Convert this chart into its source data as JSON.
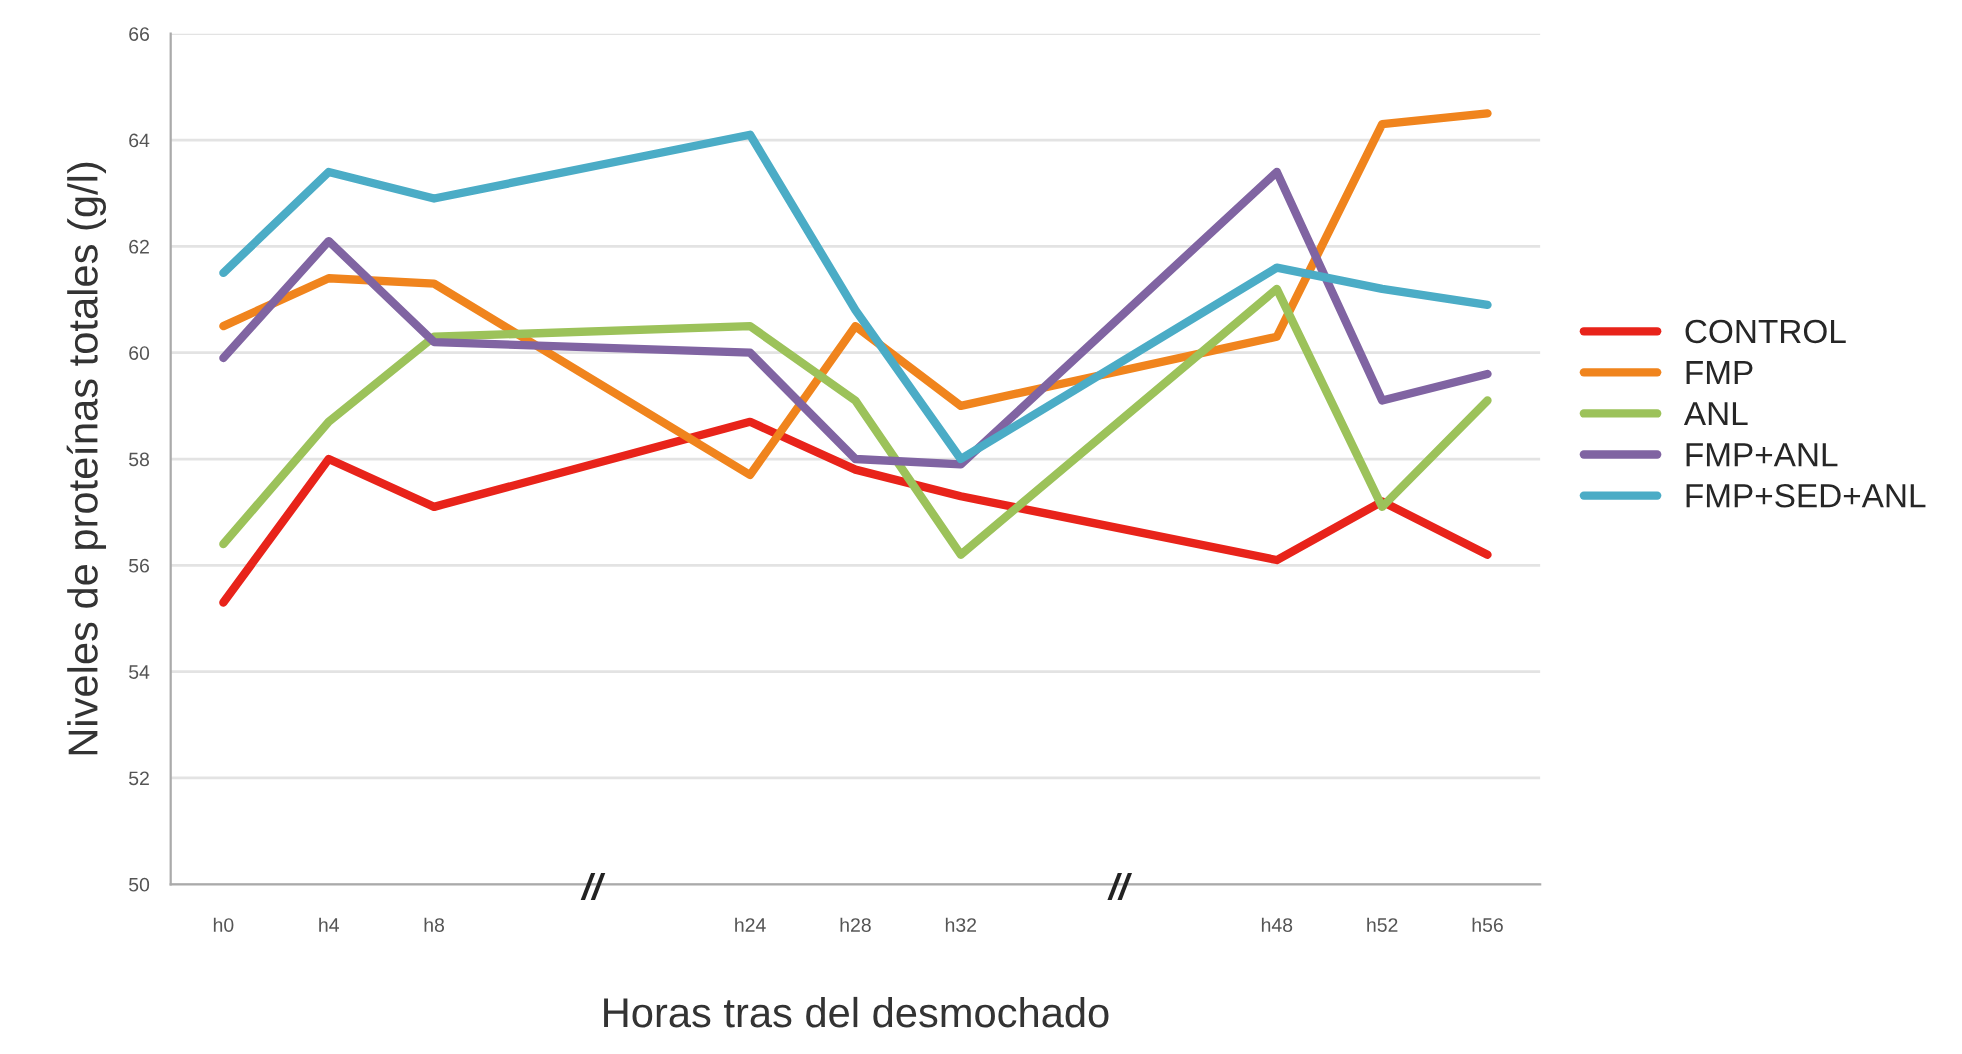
{
  "chart_data": {
    "type": "line",
    "xlabel": "Horas tras del desmochado",
    "ylabel": "Niveles de proteínas totales (g/l)",
    "categories": [
      "h0",
      "h4",
      "h8",
      null,
      null,
      "h24",
      "h28",
      "h32",
      null,
      null,
      "h48",
      "h52",
      "h56"
    ],
    "series": [
      {
        "name": "CONTROL",
        "color": "#e8231a",
        "values": [
          55.3,
          58.0,
          57.1,
          null,
          null,
          58.7,
          57.8,
          57.3,
          null,
          null,
          56.1,
          57.2,
          56.2
        ]
      },
      {
        "name": "FMP",
        "color": "#f0841d",
        "values": [
          60.5,
          61.4,
          61.3,
          null,
          null,
          57.7,
          60.5,
          59.0,
          null,
          null,
          60.3,
          64.3,
          64.5
        ]
      },
      {
        "name": "ANL",
        "color": "#9cc25a",
        "values": [
          56.4,
          58.7,
          60.3,
          null,
          null,
          60.5,
          59.1,
          56.2,
          null,
          null,
          61.2,
          57.1,
          59.1
        ]
      },
      {
        "name": "FMP+ANL",
        "color": "#8064a2",
        "values": [
          59.9,
          62.1,
          60.2,
          null,
          null,
          60.0,
          58.0,
          57.9,
          null,
          null,
          63.4,
          59.1,
          59.6
        ]
      },
      {
        "name": "FMP+SED+ANL",
        "color": "#4bacc6",
        "values": [
          61.5,
          63.4,
          62.9,
          null,
          null,
          64.1,
          60.8,
          58.0,
          null,
          null,
          61.6,
          61.2,
          60.9
        ]
      }
    ],
    "ylim": [
      50,
      66
    ],
    "yticks": [
      50,
      52,
      54,
      56,
      58,
      60,
      62,
      64,
      66
    ],
    "grid": "y",
    "legend": "right",
    "marker": "none",
    "line_style": "solid",
    "annotations": [
      "//",
      "//"
    ]
  }
}
